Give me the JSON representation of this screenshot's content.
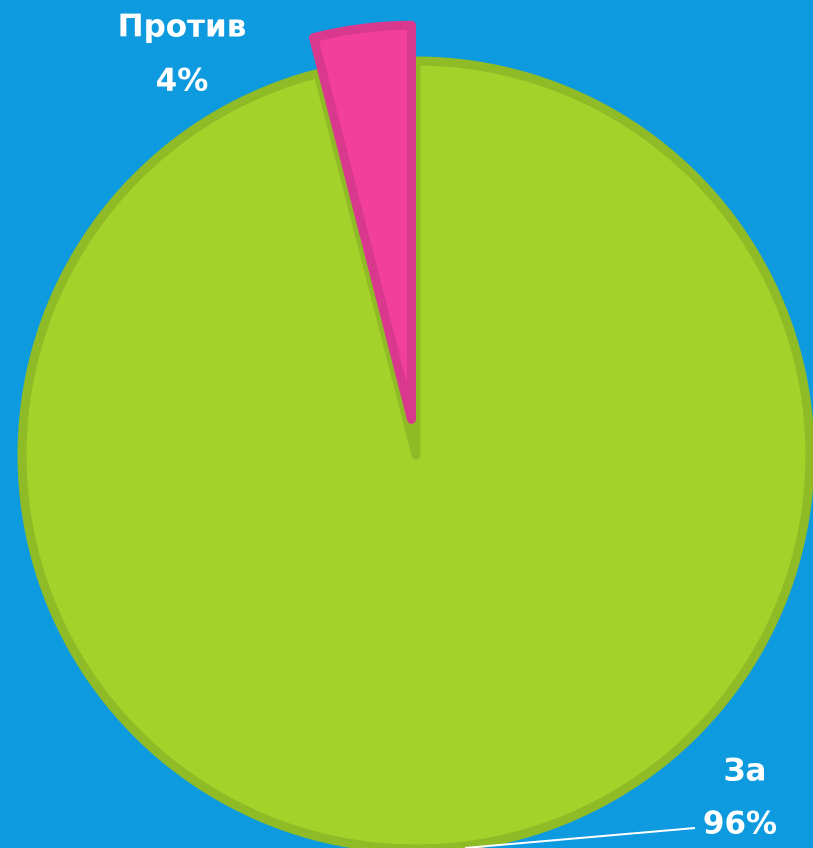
{
  "chart_data": {
    "type": "pie",
    "categories": [
      "За",
      "Против"
    ],
    "values": [
      96,
      4
    ],
    "value_labels": [
      "96%",
      "4%"
    ],
    "colors": [
      "#a4d12a",
      "#f23f9c"
    ]
  }
}
